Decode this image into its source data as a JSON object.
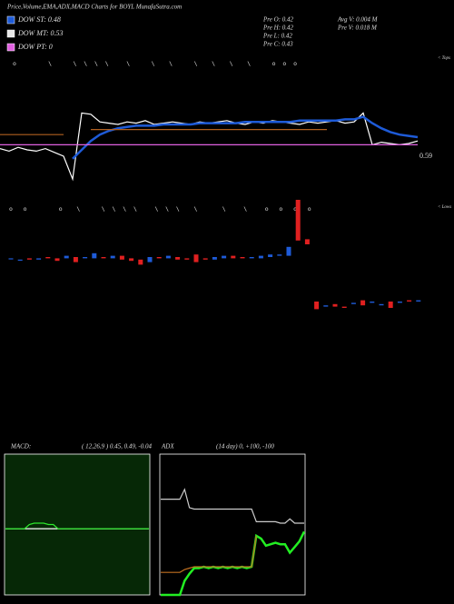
{
  "title": "Price,Volume,EMA,ADX,MACD Charts for BOYL MunafaSutra.com",
  "legend": [
    {
      "label": "DOW ST: 0.48",
      "color": "#1e5bd8"
    },
    {
      "label": "DOW MT: 0.53",
      "color": "#e8e8e8"
    },
    {
      "label": "DOW PT: 0",
      "color": "#e060e0"
    }
  ],
  "stats": [
    "Pre O: 0.42",
    "Avg V: 0.004  M",
    "Pre H: 0.42",
    "Pre V: 0.018 M",
    "Pre L: 0.42",
    "Pre C: 0.43"
  ],
  "price_label": "0.59",
  "tops_label": "< Tops",
  "lows_label": "< Lows",
  "markers_top": "o         \\      \\  \\  \\  \\     \\      \\    \\      \\    \\    \\    \\      o  o  o",
  "markers_low": "o   o         o    \\      \\  \\  \\  \\     \\  \\  \\    \\       \\     \\     o   o   o   o",
  "price_panel": {
    "ylim": [
      0,
      100
    ],
    "series": [
      {
        "name": "price",
        "color": "#ffffff",
        "values": [
          26,
          24,
          27,
          25,
          24,
          26,
          23,
          20,
          2,
          54,
          53,
          47,
          46,
          45,
          47,
          46,
          48,
          45,
          46,
          47,
          46,
          45,
          47,
          46,
          47,
          48,
          46,
          45,
          47,
          46,
          48,
          47,
          46,
          45,
          47,
          46,
          47,
          48,
          46,
          47,
          54,
          29,
          31,
          30,
          29,
          30,
          32
        ]
      },
      {
        "name": "ema-short",
        "color": "#1e5bd8",
        "values": [
          null,
          null,
          null,
          null,
          null,
          null,
          null,
          null,
          18,
          25,
          32,
          37,
          40,
          42,
          43,
          44,
          44,
          44,
          45,
          45,
          45,
          45,
          46,
          46,
          46,
          46,
          46,
          47,
          47,
          47,
          47,
          47,
          47,
          48,
          48,
          48,
          48,
          48,
          49,
          49,
          51,
          46,
          42,
          39,
          37,
          36,
          35
        ]
      },
      {
        "name": "ema-long",
        "color": "#b06020",
        "values": [
          37,
          37,
          37,
          37,
          37,
          37,
          37,
          37,
          null,
          null,
          41,
          41,
          41,
          41,
          41,
          41,
          41,
          41,
          41,
          41,
          41,
          41,
          41,
          41,
          41,
          41,
          41,
          41,
          41,
          41,
          41,
          41,
          41,
          41,
          41,
          41,
          41,
          null,
          null,
          null,
          null,
          null,
          null,
          null,
          null,
          null,
          null
        ]
      },
      {
        "name": "dow-pt",
        "color": "#e060e0",
        "values": [
          29,
          29,
          29,
          29,
          29,
          29,
          29,
          29,
          29,
          29,
          29,
          29,
          29,
          29,
          29,
          29,
          29,
          29,
          29,
          29,
          29,
          29,
          29,
          29,
          29,
          29,
          29,
          29,
          29,
          29,
          29,
          29,
          29,
          29,
          29,
          29,
          29,
          29,
          29,
          29,
          29,
          29,
          29,
          29,
          29,
          29,
          29
        ]
      }
    ]
  },
  "candle_panel": {
    "ylim": [
      0,
      100
    ],
    "candles": [
      [
        54,
        54
      ],
      [
        53,
        53
      ],
      [
        54,
        53
      ],
      [
        53,
        54
      ],
      [
        55,
        54
      ],
      [
        54,
        52
      ],
      [
        54,
        56
      ],
      [
        55,
        51
      ],
      [
        54,
        55
      ],
      [
        54,
        58
      ],
      [
        55,
        54
      ],
      [
        54,
        56
      ],
      [
        56,
        53
      ],
      [
        54,
        52
      ],
      [
        53,
        49
      ],
      [
        51,
        55
      ],
      [
        55,
        54
      ],
      [
        54,
        56
      ],
      [
        55,
        53
      ],
      [
        54,
        53
      ],
      [
        57,
        51
      ],
      [
        54,
        53
      ],
      [
        53,
        55
      ],
      [
        54,
        56
      ],
      [
        56,
        54
      ],
      [
        55,
        54
      ],
      [
        54,
        55
      ],
      [
        54,
        56
      ],
      [
        55,
        57
      ],
      [
        56,
        57
      ],
      [
        56,
        63
      ],
      [
        100,
        68
      ],
      [
        69,
        65
      ],
      [
        20,
        14
      ],
      [
        16,
        17
      ],
      [
        18,
        16
      ],
      [
        16,
        15
      ],
      [
        18,
        19
      ],
      [
        21,
        17
      ],
      [
        19,
        20
      ],
      [
        17,
        18
      ],
      [
        20,
        15
      ],
      [
        19,
        20
      ],
      [
        21,
        20
      ],
      [
        20,
        21
      ]
    ],
    "up_color": "#1e5bd8",
    "down_color": "#e02020"
  },
  "macd": {
    "label": "MACD:",
    "params": "( 12,26,9 ) 0.45, 0.49, -0.04",
    "ylim": [
      0,
      100
    ],
    "series": [
      {
        "name": "macd",
        "color": "#ffffff",
        "values": [
          47,
          47,
          47,
          47,
          47,
          47,
          47,
          47,
          47,
          47,
          47,
          47,
          47,
          47,
          47,
          47,
          47,
          47,
          47,
          47,
          47,
          47,
          47,
          47,
          47,
          47,
          47,
          47,
          47,
          47,
          47
        ]
      },
      {
        "name": "signal",
        "color": "#2ee82e",
        "values": [
          47,
          47,
          47,
          47,
          47,
          50,
          51,
          51,
          51,
          50,
          50,
          47,
          47,
          47,
          47,
          47,
          47,
          47,
          47,
          47,
          47,
          47,
          47,
          47,
          47,
          47,
          47,
          47,
          47,
          47,
          47
        ]
      }
    ]
  },
  "adx": {
    "label": "ADX",
    "params": "(14  day) 0, +100, -100",
    "ylim": [
      0,
      100
    ],
    "series": [
      {
        "name": "adx",
        "color": "#cccccc",
        "values": [
          68,
          68,
          68,
          68,
          68,
          75,
          62,
          61,
          61,
          61,
          61,
          61,
          61,
          61,
          61,
          61,
          61,
          61,
          61,
          61,
          52,
          52,
          52,
          52,
          52,
          51,
          51,
          54,
          51,
          51,
          51
        ]
      },
      {
        "name": "plus-di",
        "color": "#22ee22",
        "values": [
          0,
          0,
          0,
          0,
          0,
          10,
          15,
          19,
          19,
          20,
          19,
          20,
          19,
          20,
          19,
          20,
          19,
          20,
          19,
          20,
          42,
          40,
          35,
          36,
          37,
          36,
          36,
          30,
          34,
          38,
          45
        ]
      },
      {
        "name": "minus-di",
        "color": "#c07020",
        "values": [
          16,
          16,
          16,
          16,
          16,
          18,
          19,
          20,
          20,
          20,
          20,
          20,
          20,
          20,
          20,
          20,
          20,
          20,
          20,
          20,
          42,
          null,
          null,
          null,
          null,
          null,
          null,
          null,
          null,
          null,
          null
        ]
      }
    ]
  }
}
